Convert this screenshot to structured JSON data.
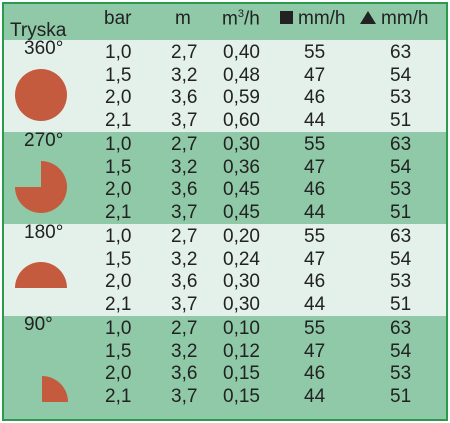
{
  "header": {
    "tryska": "Tryska",
    "bar": "bar",
    "m": "m",
    "m3h_base": "m",
    "m3h_sup": "3",
    "m3h_unit": "/h",
    "square_unit": "mm/h",
    "triangle_unit": "mm/h",
    "square_icon": "square-icon",
    "triangle_icon": "triangle-icon"
  },
  "colors": {
    "border": "#2a9a4f",
    "dark_band": "#8fc9a8",
    "light_band": "#e4f1ea",
    "shape": "#c45a3e"
  },
  "groups": [
    {
      "angle": "360°",
      "shape": "full-circle-icon",
      "rows": [
        {
          "bar": "1,0",
          "m": "2,7",
          "m3h": "0,40",
          "sq": "55",
          "tri": "63"
        },
        {
          "bar": "1,5",
          "m": "3,2",
          "m3h": "0,48",
          "sq": "47",
          "tri": "54"
        },
        {
          "bar": "2,0",
          "m": "3,6",
          "m3h": "0,59",
          "sq": "46",
          "tri": "53"
        },
        {
          "bar": "2,1",
          "m": "3,7",
          "m3h": "0,60",
          "sq": "44",
          "tri": "51"
        }
      ]
    },
    {
      "angle": "270°",
      "shape": "three-quarter-circle-icon",
      "rows": [
        {
          "bar": "1,0",
          "m": "2,7",
          "m3h": "0,30",
          "sq": "55",
          "tri": "63"
        },
        {
          "bar": "1,5",
          "m": "3,2",
          "m3h": "0,36",
          "sq": "47",
          "tri": "54"
        },
        {
          "bar": "2,0",
          "m": "3,6",
          "m3h": "0,45",
          "sq": "46",
          "tri": "53"
        },
        {
          "bar": "2,1",
          "m": "3,7",
          "m3h": "0,45",
          "sq": "44",
          "tri": "51"
        }
      ]
    },
    {
      "angle": "180°",
      "shape": "half-circle-icon",
      "rows": [
        {
          "bar": "1,0",
          "m": "2,7",
          "m3h": "0,20",
          "sq": "55",
          "tri": "63"
        },
        {
          "bar": "1,5",
          "m": "3,2",
          "m3h": "0,24",
          "sq": "47",
          "tri": "54"
        },
        {
          "bar": "2,0",
          "m": "3,6",
          "m3h": "0,30",
          "sq": "46",
          "tri": "53"
        },
        {
          "bar": "2,1",
          "m": "3,7",
          "m3h": "0,30",
          "sq": "44",
          "tri": "51"
        }
      ]
    },
    {
      "angle": "90°",
      "shape": "quarter-circle-icon",
      "rows": [
        {
          "bar": "1,0",
          "m": "2,7",
          "m3h": "0,10",
          "sq": "55",
          "tri": "63"
        },
        {
          "bar": "1,5",
          "m": "3,2",
          "m3h": "0,12",
          "sq": "47",
          "tri": "54"
        },
        {
          "bar": "2,0",
          "m": "3,6",
          "m3h": "0,15",
          "sq": "46",
          "tri": "53"
        },
        {
          "bar": "2,1",
          "m": "3,7",
          "m3h": "0,15",
          "sq": "44",
          "tri": "51"
        }
      ]
    }
  ]
}
